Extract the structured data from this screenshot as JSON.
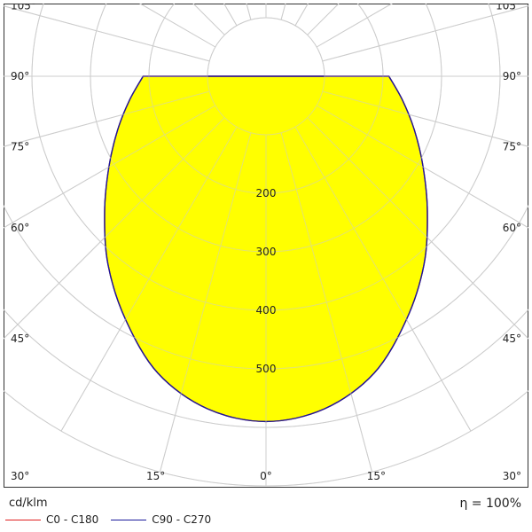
{
  "chart_data": {
    "type": "polar",
    "unit": "cd/klm",
    "efficiency_label": "η = 100%",
    "radial_ticks": [
      {
        "value": 200,
        "label": "200"
      },
      {
        "value": 300,
        "label": "300"
      },
      {
        "value": 400,
        "label": "400"
      },
      {
        "value": 500,
        "label": "500"
      }
    ],
    "radial_max": 700,
    "angle_ticks": [
      {
        "side": "left",
        "deg": 105,
        "label": "105°"
      },
      {
        "side": "left",
        "deg": 90,
        "label": "90°"
      },
      {
        "side": "left",
        "deg": 75,
        "label": "75°"
      },
      {
        "side": "left",
        "deg": 60,
        "label": "60°"
      },
      {
        "side": "left",
        "deg": 45,
        "label": "45°"
      },
      {
        "side": "right",
        "deg": 105,
        "label": "105°"
      },
      {
        "side": "right",
        "deg": 90,
        "label": "90°"
      },
      {
        "side": "right",
        "deg": 75,
        "label": "75°"
      },
      {
        "side": "right",
        "deg": 60,
        "label": "60°"
      },
      {
        "side": "right",
        "deg": 45,
        "label": "45°"
      }
    ],
    "bottom_ticks": [
      {
        "deg": -30,
        "label": "30°"
      },
      {
        "deg": -15,
        "label": "15°"
      },
      {
        "deg": 0,
        "label": "0°"
      },
      {
        "deg": 15,
        "label": "15°"
      },
      {
        "deg": 30,
        "label": "30°"
      }
    ],
    "series": [
      {
        "name": "C0 - C180",
        "color": "#e02020",
        "angles": [
          0,
          10,
          20,
          30,
          40,
          50,
          60,
          70,
          80,
          90
        ],
        "values": [
          590,
          577,
          540,
          480,
          420,
          360,
          310,
          270,
          237,
          210
        ]
      },
      {
        "name": "C90 - C270",
        "color": "#1a1a9c",
        "fill": "#ffff00",
        "angles": [
          0,
          10,
          20,
          30,
          40,
          50,
          60,
          70,
          80,
          90
        ],
        "values": [
          590,
          577,
          540,
          480,
          420,
          360,
          310,
          270,
          237,
          210
        ]
      }
    ]
  },
  "legend": {
    "series1_label": "C0 - C180",
    "series2_label": "C90 - C270"
  }
}
